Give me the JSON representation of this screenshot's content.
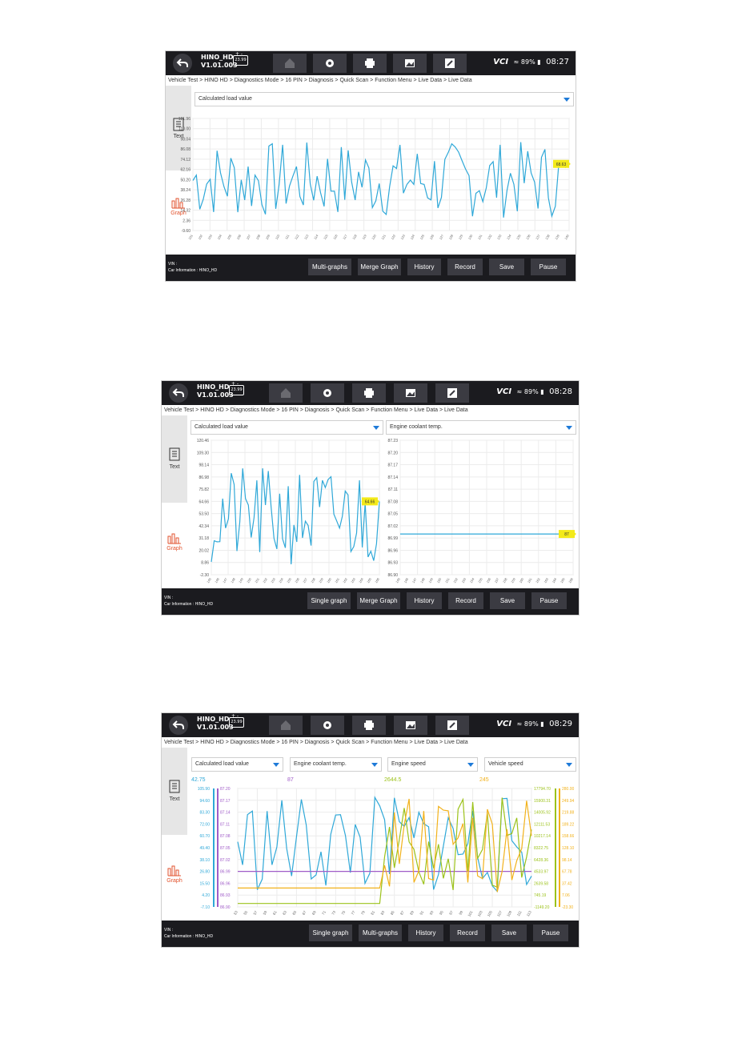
{
  "screens": [
    {
      "vehicle": {
        "name": "HINO_HD",
        "version": "V1.01.003"
      },
      "status": {
        "vci": "VCI",
        "battery_percent": "89%",
        "time": "08:27"
      },
      "breadcrumb": "Vehicle Test > HINO HD > Diagnostics Mode > 16 PIN > Diagnosis > Quick Scan > Function Menu > Live Data > Live Data",
      "sidebar": {
        "text_label": "Text",
        "graph_label": "Graph"
      },
      "selectors": [
        "Calculated load value"
      ],
      "chart_data": {
        "type": "line",
        "title": "",
        "series": [
          {
            "name": "Calculated load value",
            "color": "#2fa8d8"
          }
        ],
        "y_ticks": [
          "121.96",
          "110.00",
          "98.04",
          "86.08",
          "74.12",
          "62.16",
          "50.20",
          "38.24",
          "26.28",
          "14.32",
          "2.36",
          "-9.60"
        ],
        "ylim": [
          -9.6,
          121.96
        ],
        "current_value": "68.63"
      },
      "footer": {
        "vin_label": "VIN :",
        "car_info": "Car Information : HINO_HD"
      },
      "buttons": [
        "Multi-graphs",
        "Merge Graph",
        "History",
        "Record",
        "Save",
        "Pause"
      ]
    },
    {
      "vehicle": {
        "name": "HINO_HD",
        "version": "V1.01.003"
      },
      "status": {
        "vci": "VCI",
        "battery_percent": "89%",
        "time": "08:28"
      },
      "breadcrumb": "Vehicle Test > HINO HD > Diagnostics Mode > 16 PIN > Diagnosis > Quick Scan > Function Menu > Live Data > Live Data",
      "sidebar": {
        "text_label": "Text",
        "graph_label": "Graph"
      },
      "selectors": [
        "Calculated load value",
        "Engine coolant temp."
      ],
      "chart_data": [
        {
          "type": "line",
          "series": [
            {
              "name": "Calculated load value",
              "color": "#2fa8d8"
            }
          ],
          "y_ticks": [
            "120.46",
            "109.30",
            "98.14",
            "86.98",
            "75.82",
            "64.66",
            "53.50",
            "42.34",
            "31.18",
            "20.02",
            "8.86",
            "-2.30"
          ],
          "ylim": [
            -2.3,
            120.46
          ],
          "current_value": "64.66"
        },
        {
          "type": "line",
          "series": [
            {
              "name": "Engine coolant temp.",
              "color": "#2fa8d8"
            }
          ],
          "y_ticks": [
            "87.23",
            "87.20",
            "87.17",
            "87.14",
            "87.11",
            "87.08",
            "87.05",
            "87.02",
            "86.99",
            "86.96",
            "86.93",
            "86.90"
          ],
          "ylim": [
            86.9,
            87.23
          ],
          "current_value": "87"
        }
      ],
      "footer": {
        "vin_label": "VIN :",
        "car_info": "Car Information : HINO_HD"
      },
      "buttons": [
        "Single graph",
        "Merge Graph",
        "History",
        "Record",
        "Save",
        "Pause"
      ]
    },
    {
      "vehicle": {
        "name": "HINO_HD",
        "version": "V1.01.003"
      },
      "status": {
        "vci": "VCI",
        "battery_percent": "89%",
        "time": "08:29"
      },
      "breadcrumb": "Vehicle Test > HINO HD > Diagnostics Mode > 16 PIN > Diagnosis > Quick Scan > Function Menu > Live Data > Live Data",
      "sidebar": {
        "text_label": "Text",
        "graph_label": "Graph"
      },
      "selectors": [
        "Calculated load value",
        "Engine coolant temp.",
        "Engine speed",
        "Vehicle speed"
      ],
      "current_values": [
        "42.75",
        "87",
        "2644.5",
        "245"
      ],
      "chart_data": {
        "type": "line",
        "series": [
          {
            "name": "Calculated load value",
            "color": "#2fa8d8",
            "y_ticks": [
              "105.90",
              "94.60",
              "83.30",
              "72.00",
              "60.70",
              "49.40",
              "38.10",
              "26.80",
              "15.50",
              "4.20",
              "-7.10"
            ]
          },
          {
            "name": "Engine coolant temp.",
            "color": "#a05cc8",
            "y_ticks": [
              "87.20",
              "87.17",
              "87.14",
              "87.11",
              "87.08",
              "87.05",
              "87.02",
              "86.99",
              "86.96",
              "86.93",
              "86.90"
            ]
          },
          {
            "name": "Engine speed",
            "color": "#9cc21a",
            "y_ticks": [
              "17794.70",
              "15900.31",
              "14005.92",
              "12111.53",
              "10217.14",
              "8322.75",
              "6428.36",
              "4533.97",
              "2639.58",
              "745.19",
              "-1149.20"
            ]
          },
          {
            "name": "Vehicle speed",
            "color": "#f2b21c",
            "y_ticks": [
              "280.00",
              "249.94",
              "219.88",
              "189.22",
              "158.66",
              "128.10",
              "98.14",
              "67.78",
              "37.42",
              "7.06",
              "-23.30"
            ]
          }
        ],
        "x_ticks": [
          "53",
          "55",
          "57",
          "59",
          "61",
          "63",
          "65",
          "67",
          "69",
          "71",
          "73",
          "75",
          "77",
          "79",
          "81",
          "83",
          "85",
          "87",
          "89",
          "91",
          "93",
          "95",
          "97",
          "99",
          "101",
          "103",
          "105",
          "107",
          "109",
          "111",
          "113"
        ]
      },
      "footer": {
        "vin_label": "VIN :",
        "car_info": "Car Information : HINO_HD"
      },
      "buttons": [
        "Single graph",
        "Multi-graphs",
        "History",
        "Record",
        "Save",
        "Pause"
      ]
    }
  ],
  "colors": {
    "topbar": "#1b1b1f",
    "button": "#3b3b42",
    "accent": "#1e7ad8",
    "graph_tab": "#e2522c"
  }
}
